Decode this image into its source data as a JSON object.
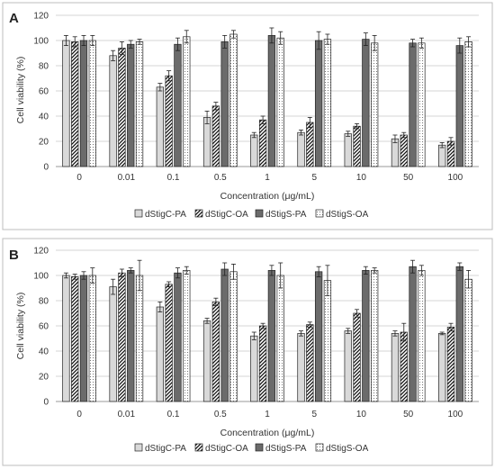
{
  "chart_data": [
    {
      "panel": "A",
      "type": "bar",
      "categories": [
        "0",
        "0.01",
        "0.1",
        "0.5",
        "1",
        "5",
        "10",
        "50",
        "100"
      ],
      "xlabel": "Concentration (μg/mL)",
      "ylabel": "Cell viability (%)",
      "ylim": [
        0,
        120
      ],
      "yticks": [
        0,
        20,
        40,
        60,
        80,
        100,
        120
      ],
      "grid": true,
      "legend_position": "bottom",
      "series": [
        {
          "name": "dStigC-PA",
          "pattern": "light-gray",
          "values": [
            100,
            88,
            63,
            39,
            25,
            27,
            26,
            22,
            17
          ],
          "errors": [
            4,
            4,
            3,
            5,
            2,
            2,
            2,
            3,
            2
          ]
        },
        {
          "name": "dStigC-OA",
          "pattern": "diagonal-hatch",
          "values": [
            99,
            94,
            72,
            48,
            37,
            35,
            32,
            25,
            20
          ],
          "errors": [
            4,
            5,
            4,
            3,
            3,
            4,
            2,
            2,
            3
          ]
        },
        {
          "name": "dStigS-PA",
          "pattern": "dark-gray",
          "values": [
            100,
            97,
            97,
            99,
            104,
            100,
            101,
            98,
            96
          ],
          "errors": [
            4,
            3,
            5,
            5,
            6,
            7,
            5,
            3,
            6
          ]
        },
        {
          "name": "dStigS-OA",
          "pattern": "dotted",
          "values": [
            100,
            99,
            103,
            105,
            102,
            101,
            98,
            98,
            99
          ],
          "errors": [
            4,
            2,
            5,
            3,
            5,
            4,
            6,
            4,
            4
          ]
        }
      ]
    },
    {
      "panel": "B",
      "type": "bar",
      "categories": [
        "0",
        "0.01",
        "0.1",
        "0.5",
        "1",
        "5",
        "10",
        "50",
        "100"
      ],
      "xlabel": "Concentration (μg/mL)",
      "ylabel": "Cell viability (%)",
      "ylim": [
        0,
        120
      ],
      "yticks": [
        0,
        20,
        40,
        60,
        80,
        100,
        120
      ],
      "grid": true,
      "legend_position": "bottom",
      "series": [
        {
          "name": "dStigC-PA",
          "pattern": "light-gray",
          "values": [
            100,
            91,
            75,
            64,
            52,
            54,
            56,
            54,
            54
          ],
          "errors": [
            2,
            6,
            4,
            2,
            3,
            2,
            2,
            2,
            1
          ]
        },
        {
          "name": "dStigC-OA",
          "pattern": "diagonal-hatch",
          "values": [
            99,
            102,
            93,
            79,
            60,
            61,
            70,
            55,
            59
          ],
          "errors": [
            2,
            3,
            2,
            3,
            2,
            2,
            3,
            7,
            3
          ]
        },
        {
          "name": "dStigS-PA",
          "pattern": "dark-gray",
          "values": [
            100,
            104,
            102,
            105,
            104,
            103,
            104,
            107,
            107
          ],
          "errors": [
            3,
            2,
            4,
            5,
            4,
            4,
            3,
            5,
            3
          ]
        },
        {
          "name": "dStigS-OA",
          "pattern": "dotted",
          "values": [
            100,
            100,
            104,
            103,
            100,
            96,
            104,
            104,
            97
          ],
          "errors": [
            6,
            12,
            3,
            6,
            10,
            12,
            2,
            4,
            7
          ]
        }
      ]
    }
  ]
}
